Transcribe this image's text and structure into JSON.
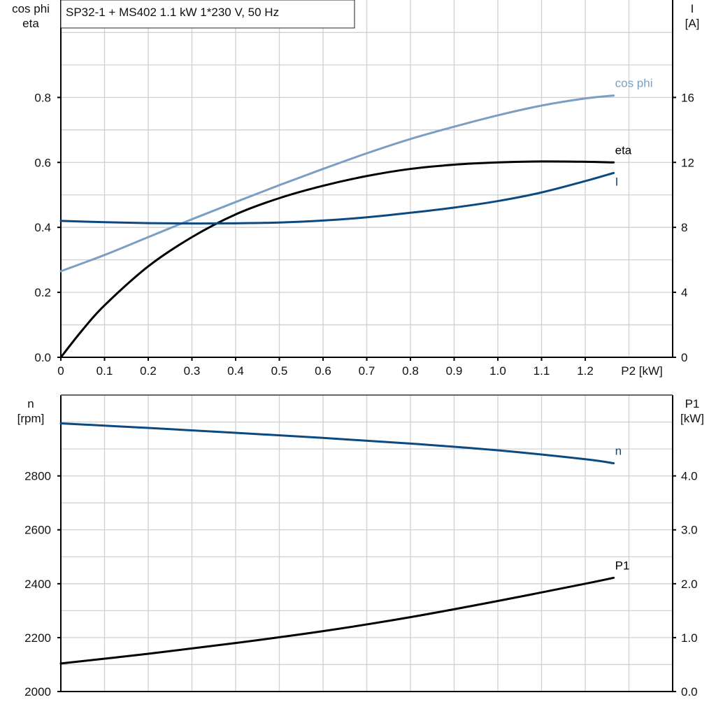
{
  "title": "SP32-1 + MS402   1.1 kW   1*230 V, 50 Hz",
  "colors": {
    "cosphi": "#7a9fc2",
    "blue": "#0b4a80",
    "black": "#000000",
    "grid": "#d0d0d0"
  },
  "chart_data": [
    {
      "type": "line",
      "xlabel": "P2 [kW]",
      "xlim": [
        0,
        1.4
      ],
      "xticks": [
        "0",
        "0.1",
        "0.2",
        "0.3",
        "0.4",
        "0.5",
        "0.6",
        "0.7",
        "0.8",
        "0.9",
        "1.0",
        "1.1",
        "1.2"
      ],
      "ylabel_left": [
        "cos phi",
        "eta"
      ],
      "ylim_left": [
        0,
        1.1
      ],
      "yticks_left": [
        "0.0",
        "0.2",
        "0.4",
        "0.6",
        "0.8"
      ],
      "ylabel_right": [
        "I",
        "[A]"
      ],
      "ylim_right": [
        0,
        22
      ],
      "yticks_right": [
        "0",
        "4",
        "8",
        "12",
        "16"
      ],
      "grid": true,
      "series": [
        {
          "name": "cos phi",
          "axis": "left",
          "color": "#7a9fc2",
          "x": [
            0,
            0.1,
            0.2,
            0.3,
            0.4,
            0.5,
            0.6,
            0.7,
            0.8,
            0.9,
            1.0,
            1.1,
            1.2,
            1.265
          ],
          "y": [
            0.265,
            0.315,
            0.37,
            0.425,
            0.478,
            0.53,
            0.58,
            0.628,
            0.672,
            0.71,
            0.745,
            0.775,
            0.797,
            0.806
          ]
        },
        {
          "name": "eta",
          "axis": "left",
          "color": "#000000",
          "x": [
            0,
            0.05,
            0.1,
            0.2,
            0.3,
            0.4,
            0.5,
            0.6,
            0.7,
            0.8,
            0.9,
            1.0,
            1.1,
            1.2,
            1.265
          ],
          "y": [
            0,
            0.085,
            0.16,
            0.28,
            0.37,
            0.44,
            0.49,
            0.528,
            0.558,
            0.58,
            0.593,
            0.6,
            0.603,
            0.602,
            0.6
          ]
        },
        {
          "name": "I",
          "axis": "right",
          "color": "#0b4a80",
          "x": [
            0,
            0.1,
            0.2,
            0.3,
            0.4,
            0.5,
            0.6,
            0.7,
            0.8,
            0.9,
            1.0,
            1.1,
            1.2,
            1.265
          ],
          "y": [
            8.4,
            8.32,
            8.26,
            8.24,
            8.25,
            8.3,
            8.42,
            8.62,
            8.9,
            9.22,
            9.62,
            10.15,
            10.85,
            11.35
          ]
        }
      ]
    },
    {
      "type": "line",
      "xlim": [
        0,
        1.4
      ],
      "ylabel_left": [
        "n",
        "[rpm]"
      ],
      "ylim_left": [
        2000,
        3100
      ],
      "yticks_left": [
        "2000",
        "2200",
        "2400",
        "2600",
        "2800"
      ],
      "ylabel_right": [
        "P1",
        "[kW]"
      ],
      "ylim_right": [
        0,
        5.5
      ],
      "yticks_right": [
        "0.0",
        "1.0",
        "2.0",
        "3.0",
        "4.0"
      ],
      "grid": true,
      "series": [
        {
          "name": "n",
          "axis": "left",
          "color": "#0b4a80",
          "x": [
            0,
            0.2,
            0.4,
            0.6,
            0.8,
            1.0,
            1.2,
            1.265
          ],
          "y": [
            2995,
            2978,
            2960,
            2941,
            2920,
            2895,
            2862,
            2847
          ]
        },
        {
          "name": "P1",
          "axis": "right",
          "color": "#000000",
          "x": [
            0,
            0.2,
            0.4,
            0.6,
            0.8,
            1.0,
            1.2,
            1.265
          ],
          "y": [
            0.52,
            0.7,
            0.9,
            1.12,
            1.38,
            1.68,
            2.0,
            2.11
          ]
        }
      ]
    }
  ]
}
